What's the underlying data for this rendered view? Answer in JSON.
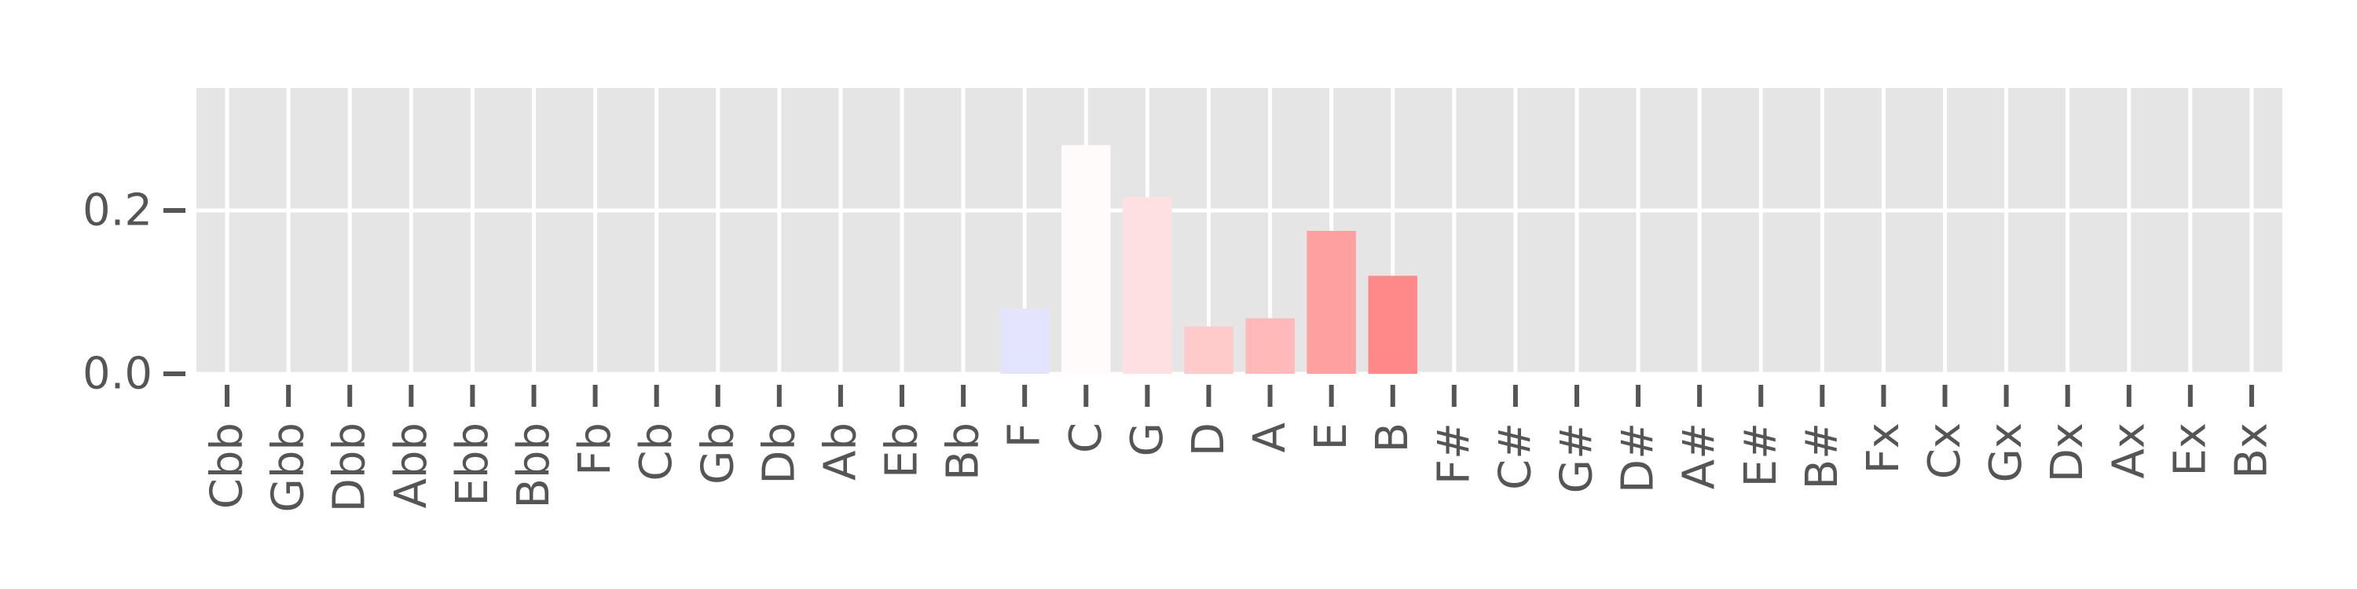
{
  "chart_data": {
    "type": "bar",
    "categories": [
      "Cbb",
      "Gbb",
      "Dbb",
      "Abb",
      "Ebb",
      "Bbb",
      "Fb",
      "Cb",
      "Gb",
      "Db",
      "Ab",
      "Eb",
      "Bb",
      "F",
      "C",
      "G",
      "D",
      "A",
      "E",
      "B",
      "F#",
      "C#",
      "G#",
      "D#",
      "A#",
      "E#",
      "B#",
      "Fx",
      "Cx",
      "Gx",
      "Dx",
      "Ax",
      "Ex",
      "Bx"
    ],
    "values": [
      0,
      0,
      0,
      0,
      0,
      0,
      0,
      0,
      0,
      0,
      0,
      0,
      0,
      0.08,
      0.28,
      0.216,
      0.058,
      0.068,
      0.175,
      0.12,
      0,
      0,
      0,
      0,
      0,
      0,
      0,
      0,
      0,
      0,
      0,
      0,
      0,
      0
    ],
    "bar_colors": {
      "F": "#e4e4ff",
      "C": "#fffbfb",
      "G": "#ffe0e2",
      "D": "#ffcaca",
      "A": "#ffb9b9",
      "E": "#ffa0a0",
      "B": "#ff8888"
    },
    "y_ticks": [
      {
        "value": 0.0,
        "label": "0.0"
      },
      {
        "value": 0.2,
        "label": "0.2"
      }
    ],
    "ylim": [
      0,
      0.35
    ],
    "title": "",
    "xlabel": "",
    "ylabel": "",
    "grid": true,
    "background": "#e5e5e5",
    "grid_color": "#ffffff",
    "tick_color": "#555555"
  }
}
